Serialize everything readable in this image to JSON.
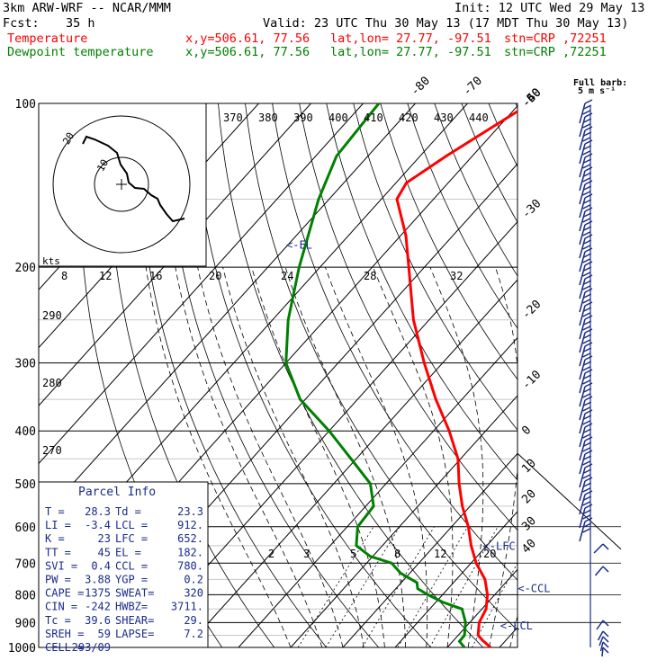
{
  "header": {
    "model": "3km ARW-WRF -- NCAR/MMM",
    "init": "Init: 12 UTC Wed 29 May 13",
    "fcst_label": "Fcst:",
    "fcst_value": "35 h",
    "valid": "Valid: 23 UTC Thu 30 May 13 (17 MDT Thu 30 May 13)",
    "temp_label": "Temperature",
    "dew_label": "Dewpoint temperature",
    "xy": "x,y=506.61, 77.56",
    "latlon": "lat,lon= 27.77, -97.51",
    "stn": "stn=CRP ,72251",
    "temp_color": "#ff0000",
    "dew_color": "#008000"
  },
  "chart_data": {
    "type": "skew-t sounding",
    "pressure_labels": [
      "100",
      "200",
      "300",
      "400",
      "500",
      "600",
      "700",
      "800",
      "900",
      "1000"
    ],
    "pressure_levels": [
      100,
      200,
      300,
      400,
      500,
      600,
      700,
      800,
      900,
      1000
    ],
    "isotherm_labels": [
      "-80",
      "-70",
      "-60",
      "-50",
      "-40",
      "-30",
      "-20",
      "-10",
      "0",
      "10",
      "20",
      "30",
      "40"
    ],
    "theta_labels": [
      "370",
      "380",
      "390",
      "400",
      "410",
      "420",
      "430",
      "440"
    ],
    "theta_left_labels": [
      "290",
      "280",
      "270"
    ],
    "mixing_ratio_labels_top": [
      "8",
      "12",
      "16",
      "20",
      "24",
      "28",
      "32"
    ],
    "mixing_ratio_labels_bottom": [
      "2",
      "3",
      "5",
      "8",
      "12",
      "20"
    ],
    "kts_label": "kts",
    "full_barb_label": "Full barb:",
    "full_barb_value": "5 m s⁻¹",
    "markers": [
      {
        "label": "<-EL",
        "pressure": 182
      },
      {
        "label": "<-LFC",
        "pressure": 652
      },
      {
        "label": "<-CCL",
        "pressure": 780
      },
      {
        "label": "<-LCL",
        "pressure": 912
      }
    ],
    "temperature": {
      "name": "Temperature",
      "color": "#ff0000",
      "p": [
        1000,
        970,
        950,
        900,
        850,
        800,
        750,
        700,
        650,
        600,
        550,
        500,
        450,
        400,
        350,
        300,
        250,
        200,
        175,
        150,
        140,
        125,
        110,
        100
      ],
      "t": [
        28.3,
        25.5,
        23.8,
        21.8,
        20.8,
        18.6,
        15.5,
        11.0,
        7.0,
        3.2,
        -1.5,
        -6.0,
        -10.5,
        -17.0,
        -25.0,
        -33.5,
        -43.0,
        -53.0,
        -59.0,
        -67.0,
        -68.0,
        -65.0,
        -61.0,
        -58.0
      ]
    },
    "dewpoint": {
      "name": "Dewpoint temperature",
      "color": "#008000",
      "p": [
        1000,
        975,
        950,
        900,
        850,
        825,
        800,
        780,
        760,
        730,
        700,
        680,
        650,
        600,
        550,
        500,
        450,
        400,
        350,
        300,
        250,
        200,
        150,
        125,
        100
      ],
      "td": [
        23.3,
        21.3,
        21.2,
        19.2,
        16.2,
        11.2,
        7.2,
        4.2,
        3.0,
        -1.8,
        -5.2,
        -10.5,
        -15.0,
        -18.0,
        -18.5,
        -23.0,
        -31.0,
        -40.0,
        -51.0,
        -60.0,
        -67.0,
        -74.0,
        -82.0,
        -86.0,
        -87.0
      ]
    },
    "hodograph": {
      "speed_rings_kts": [
        10,
        20
      ],
      "labels": [
        "20",
        "10"
      ]
    },
    "wind_barbs": "17 rows of full barbs plus partial barbs near the surface"
  },
  "parcel_info": {
    "title": "Parcel Info",
    "rows": [
      [
        "T   =",
        "28.3",
        "Td  =",
        "23.3"
      ],
      [
        "LI  =",
        "-3.4",
        "LCL =",
        "912."
      ],
      [
        "K   =",
        "23",
        "LFC =",
        "652."
      ],
      [
        "TT  =",
        "45",
        "EL  =",
        "182."
      ],
      [
        "SVI =",
        "0.4",
        "CCL =",
        "780."
      ],
      [
        "PW  =",
        "3.88",
        "YGP =",
        "0.2"
      ],
      [
        "CAPE =",
        "1375",
        "SWEAT=",
        "320"
      ],
      [
        "CIN  =",
        "-242",
        "HWBZ=",
        "3711."
      ],
      [
        "Tc   =",
        "39.6",
        "SHEAR=",
        "29."
      ],
      [
        "SREH =",
        "59",
        "LAPSE=",
        "7.2"
      ],
      [
        "CELL =",
        "293/09",
        "",
        ""
      ]
    ]
  }
}
